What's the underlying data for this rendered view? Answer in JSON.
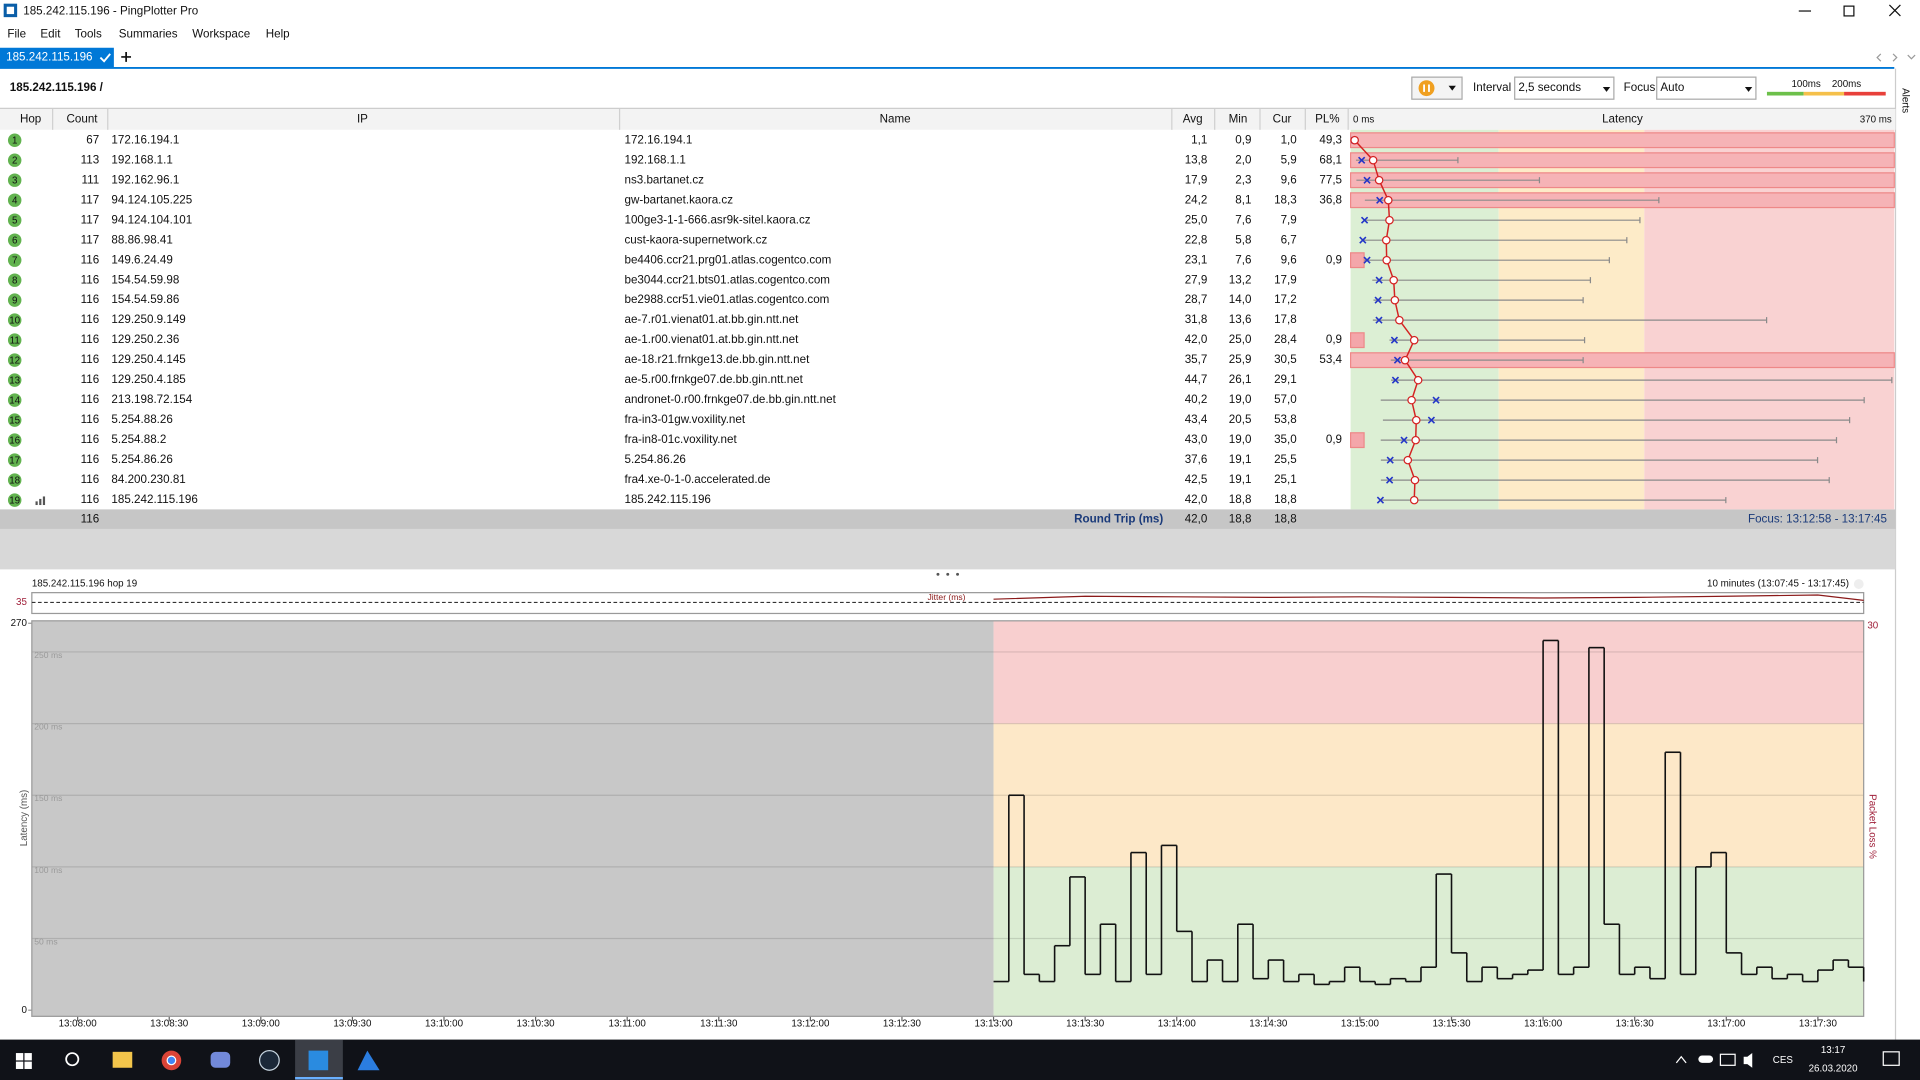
{
  "window": {
    "title": "185.242.115.196 - PingPlotter Pro"
  },
  "menu": [
    "File",
    "Edit",
    "Tools",
    "Summaries",
    "Workspace",
    "Help"
  ],
  "tabs": [
    "185.242.115.196"
  ],
  "side_panel": "Alerts",
  "toolbar": {
    "path": "185.242.115.196 /",
    "interval_label": "Interval",
    "interval": "2,5 seconds",
    "focus_label": "Focus",
    "focus": "Auto",
    "thresholds": [
      {
        "value": 100,
        "label": "100ms"
      },
      {
        "value": 200,
        "label": "200ms"
      }
    ]
  },
  "table": {
    "columns": [
      "Hop",
      "Count",
      "IP",
      "Name",
      "Avg",
      "Min",
      "Cur",
      "PL%",
      "Latency"
    ],
    "latency_ticks": [
      {
        "value": 0,
        "label": "0 ms"
      },
      {
        "value": 370,
        "label": "370 ms"
      }
    ],
    "rows": [
      {
        "hop": 1,
        "count": 67,
        "ip": "172.16.194.1",
        "name": "172.16.194.1",
        "avg": "1,1",
        "min": "0,9",
        "cur": "1,0",
        "pl": "49,3",
        "max_ms": 2
      },
      {
        "hop": 2,
        "count": 113,
        "ip": "192.168.1.1",
        "name": "192.168.1.1",
        "avg": "13,8",
        "min": "2,0",
        "cur": "5,9",
        "pl": "68,1",
        "max_ms": 72
      },
      {
        "hop": 3,
        "count": 111,
        "ip": "192.162.96.1",
        "name": "ns3.bartanet.cz",
        "avg": "17,9",
        "min": "2,3",
        "cur": "9,6",
        "pl": "77,5",
        "max_ms": 128
      },
      {
        "hop": 4,
        "count": 117,
        "ip": "94.124.105.225",
        "name": "gw-bartanet.kaora.cz",
        "avg": "24,2",
        "min": "8,1",
        "cur": "18,3",
        "pl": "36,8",
        "max_ms": 210
      },
      {
        "hop": 5,
        "count": 117,
        "ip": "94.124.104.101",
        "name": "100ge3-1-1-666.asr9k-sitel.kaora.cz",
        "avg": "25,0",
        "min": "7,6",
        "cur": "7,9",
        "pl": null,
        "max_ms": 197
      },
      {
        "hop": 6,
        "count": 117,
        "ip": "88.86.98.41",
        "name": "cust-kaora-supernetwork.cz",
        "avg": "22,8",
        "min": "5,8",
        "cur": "6,7",
        "pl": null,
        "max_ms": 188
      },
      {
        "hop": 7,
        "count": 116,
        "ip": "149.6.24.49",
        "name": "be4406.ccr21.prg01.atlas.cogentco.com",
        "avg": "23,1",
        "min": "7,6",
        "cur": "9,6",
        "pl": "0,9",
        "max_ms": 176
      },
      {
        "hop": 8,
        "count": 116,
        "ip": "154.54.59.98",
        "name": "be3044.ccr21.bts01.atlas.cogentco.com",
        "avg": "27,9",
        "min": "13,2",
        "cur": "17,9",
        "pl": null,
        "max_ms": 163
      },
      {
        "hop": 9,
        "count": 116,
        "ip": "154.54.59.86",
        "name": "be2988.ccr51.vie01.atlas.cogentco.com",
        "avg": "28,7",
        "min": "14,0",
        "cur": "17,2",
        "pl": null,
        "max_ms": 158
      },
      {
        "hop": 10,
        "count": 116,
        "ip": "129.250.9.149",
        "name": "ae-7.r01.vienat01.at.bb.gin.ntt.net",
        "avg": "31,8",
        "min": "13,6",
        "cur": "17,8",
        "pl": null,
        "max_ms": 284
      },
      {
        "hop": 11,
        "count": 116,
        "ip": "129.250.2.36",
        "name": "ae-1.r00.vienat01.at.bb.gin.ntt.net",
        "avg": "42,0",
        "min": "25,0",
        "cur": "28,4",
        "pl": "0,9",
        "max_ms": 159
      },
      {
        "hop": 12,
        "count": 116,
        "ip": "129.250.4.145",
        "name": "ae-18.r21.frnkge13.de.bb.gin.ntt.net",
        "avg": "35,7",
        "min": "25,9",
        "cur": "30,5",
        "pl": "53,4",
        "max_ms": 158
      },
      {
        "hop": 13,
        "count": 116,
        "ip": "129.250.4.185",
        "name": "ae-5.r00.frnkge07.de.bb.gin.ntt.net",
        "avg": "44,7",
        "min": "26,1",
        "cur": "29,1",
        "pl": null,
        "max_ms": 370
      },
      {
        "hop": 14,
        "count": 116,
        "ip": "213.198.72.154",
        "name": "andronet-0.r00.frnkge07.de.bb.gin.ntt.net",
        "avg": "40,2",
        "min": "19,0",
        "cur": "57,0",
        "pl": null,
        "max_ms": 351
      },
      {
        "hop": 15,
        "count": 116,
        "ip": "5.254.88.26",
        "name": "fra-in3-01gw.voxility.net",
        "avg": "43,4",
        "min": "20,5",
        "cur": "53,8",
        "pl": null,
        "max_ms": 341
      },
      {
        "hop": 16,
        "count": 116,
        "ip": "5.254.88.2",
        "name": "fra-in8-01c.voxility.net",
        "avg": "43,0",
        "min": "19,0",
        "cur": "35,0",
        "pl": "0,9",
        "max_ms": 332
      },
      {
        "hop": 17,
        "count": 116,
        "ip": "5.254.86.26",
        "name": "5.254.86.26",
        "avg": "37,6",
        "min": "19,1",
        "cur": "25,5",
        "pl": null,
        "max_ms": 319
      },
      {
        "hop": 18,
        "count": 116,
        "ip": "84.200.230.81",
        "name": "fra4.xe-0-1-0.accelerated.de",
        "avg": "42,5",
        "min": "19,1",
        "cur": "25,1",
        "pl": null,
        "max_ms": 327
      },
      {
        "hop": 19,
        "count": 116,
        "ip": "185.242.115.196",
        "name": "185.242.115.196",
        "avg": "42,0",
        "min": "18,8",
        "cur": "18,8",
        "pl": null,
        "max_ms": 256
      }
    ],
    "footer": {
      "count": 116,
      "label": "Round Trip (ms)",
      "avg": "42,0",
      "min": "18,8",
      "cur": "18,8",
      "focus": "Focus: 13:12:58 - 13:17:45"
    }
  },
  "chart_data": {
    "type": "line",
    "title": "185.242.115.196 hop 19",
    "range_label": "10 minutes (13:07:45 - 13:17:45)",
    "ylabel": "Latency (ms)",
    "y2label": "Packet Loss %",
    "xlim": [
      "13:07:45",
      "13:17:45"
    ],
    "xticks": [
      "13:08:00",
      "13:08:30",
      "13:09:00",
      "13:09:30",
      "13:10:00",
      "13:10:30",
      "13:11:00",
      "13:11:30",
      "13:12:00",
      "13:12:30",
      "13:13:00",
      "13:13:30",
      "13:14:00",
      "13:14:30",
      "13:15:00",
      "13:15:30",
      "13:16:00",
      "13:16:30",
      "13:17:00",
      "13:17:30"
    ],
    "ylim": [
      0,
      270
    ],
    "yticks": [
      0,
      {
        "value": 50,
        "label": "50 ms"
      },
      {
        "value": 100,
        "label": "100 ms"
      },
      {
        "value": 150,
        "label": "150 ms"
      },
      {
        "value": 200,
        "label": "200 ms"
      },
      {
        "value": 250,
        "label": "250 ms"
      },
      270
    ],
    "y2lim": [
      0,
      30
    ],
    "y2ticks": [
      30
    ],
    "x": [
      "13:13:00",
      "13:13:05",
      "13:13:10",
      "13:13:15",
      "13:13:20",
      "13:13:25",
      "13:13:30",
      "13:13:35",
      "13:13:40",
      "13:13:45",
      "13:13:50",
      "13:13:55",
      "13:14:00",
      "13:14:05",
      "13:14:10",
      "13:14:15",
      "13:14:20",
      "13:14:25",
      "13:14:30",
      "13:14:35",
      "13:14:40",
      "13:14:45",
      "13:14:50",
      "13:14:55",
      "13:15:00",
      "13:15:05",
      "13:15:10",
      "13:15:15",
      "13:15:20",
      "13:15:25",
      "13:15:30",
      "13:15:35",
      "13:15:40",
      "13:15:45",
      "13:15:50",
      "13:15:55",
      "13:16:00",
      "13:16:05",
      "13:16:10",
      "13:16:15",
      "13:16:20",
      "13:16:25",
      "13:16:30",
      "13:16:35",
      "13:16:40",
      "13:16:45",
      "13:16:50",
      "13:16:55",
      "13:17:00",
      "13:17:05",
      "13:17:10",
      "13:17:15",
      "13:17:20",
      "13:17:25",
      "13:17:30",
      "13:17:35",
      "13:17:40",
      "13:17:45"
    ],
    "series": [
      {
        "name": "Latency",
        "color": "#111111",
        "values": [
          20,
          150,
          25,
          20,
          45,
          93,
          25,
          60,
          20,
          110,
          25,
          115,
          55,
          20,
          35,
          20,
          60,
          22,
          35,
          20,
          25,
          18,
          20,
          30,
          20,
          18,
          22,
          20,
          30,
          95,
          40,
          20,
          30,
          22,
          25,
          28,
          258,
          25,
          30,
          253,
          60,
          25,
          30,
          22,
          180,
          25,
          100,
          110,
          40,
          25,
          30,
          22,
          25,
          20,
          28,
          35,
          30,
          20
        ]
      }
    ],
    "jitter": {
      "label": "Jitter (ms)",
      "color": "#8b1a1a",
      "ylim": [
        0,
        35
      ],
      "yticks": [
        35
      ],
      "x": [
        "13:13:00",
        "13:13:30",
        "13:14:00",
        "13:14:30",
        "13:15:00",
        "13:15:30",
        "13:16:00",
        "13:16:30",
        "13:17:00",
        "13:17:30",
        "13:17:45"
      ],
      "values": [
        24,
        29,
        28,
        27,
        28,
        27,
        26,
        27,
        29,
        31,
        22
      ]
    },
    "grid": true
  },
  "taskbar": {
    "language": "CES",
    "time": "13:17",
    "date": "26.03.2020"
  }
}
